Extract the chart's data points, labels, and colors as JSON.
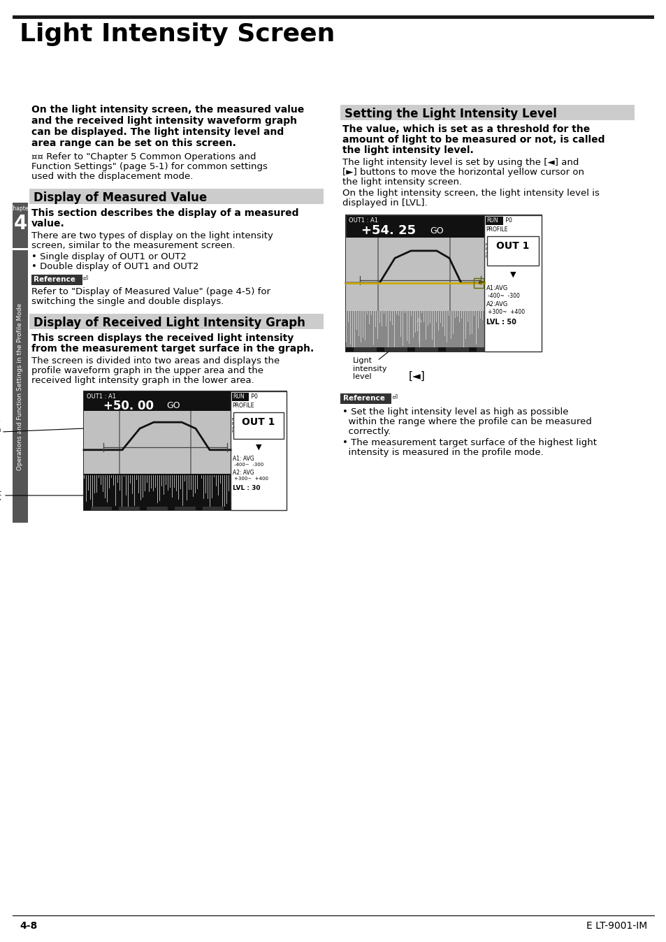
{
  "title": "Light Intensity Screen",
  "page_bg": "#ffffff",
  "title_bar_color": "#1a1a1a",
  "section_header_bg": "#cccccc",
  "intro_bold_lines": [
    "On the light intensity screen, the measured value",
    "and the received light intensity waveform graph",
    "can be displayed. The light intensity level and",
    "area range can be set on this screen."
  ],
  "intro_normal_lines": [
    "¤¤ Refer to \"Chapter 5 Common Operations and",
    "Function Settings\" (page 5-1) for common settings",
    "used with the displacement mode."
  ],
  "sec1_title": "Display of Measured Value",
  "sec1_bold_lines": [
    "This section describes the display of a measured",
    "value."
  ],
  "sec1_body_lines": [
    "There are two types of display on the light intensity",
    "screen, similar to the measurement screen."
  ],
  "sec1_bullets": [
    "Single display of OUT1 or OUT2",
    "Double display of OUT1 and OUT2"
  ],
  "sec1_ref_lines": [
    "Refer to \"Display of Measured Value\" (page 4-5) for",
    "switching the single and double displays."
  ],
  "sec2_title": "Display of Received Light Intensity Graph",
  "sec2_bold_lines": [
    "This screen displays the received light intensity",
    "from the measurement target surface in the graph."
  ],
  "sec2_body_lines": [
    "The screen is divided into two areas and displays the",
    "profile waveform graph in the upper area and the",
    "received light intensity graph in the lower area."
  ],
  "sec3_title": "Setting the Light Intensity Level",
  "sec3_bold_lines": [
    "The value, which is set as a threshold for the",
    "amount of light to be measured or not, is called",
    "the light intensity level."
  ],
  "sec3_body1_lines": [
    "The light intensity level is set by using the [◄] and",
    "[►] buttons to move the horizontal yellow cursor on",
    "the light intensity screen."
  ],
  "sec3_body2_lines": [
    "On the light intensity screen, the light intensity level is",
    "displayed in [LVL]."
  ],
  "ref2_bullet1_lines": [
    "• Set the light intensity level as high as possible",
    "  within the range where the profile can be measured",
    "  correctly."
  ],
  "ref2_bullet2_lines": [
    "• The measurement target surface of the highest light",
    "  intensity is measured in the profile mode."
  ],
  "footer_left": "4-8",
  "footer_right": "E LT-9001-IM",
  "chapter_number": "4",
  "chapter_label": "Chapter",
  "sidebar_label": "Operations and Function Settings in the Profile Mode",
  "screen1_val": "+50. 00",
  "screen2_val": "+54. 25",
  "screen1_lvl": "LVL : 30",
  "screen2_lvl": "LVL : 50"
}
